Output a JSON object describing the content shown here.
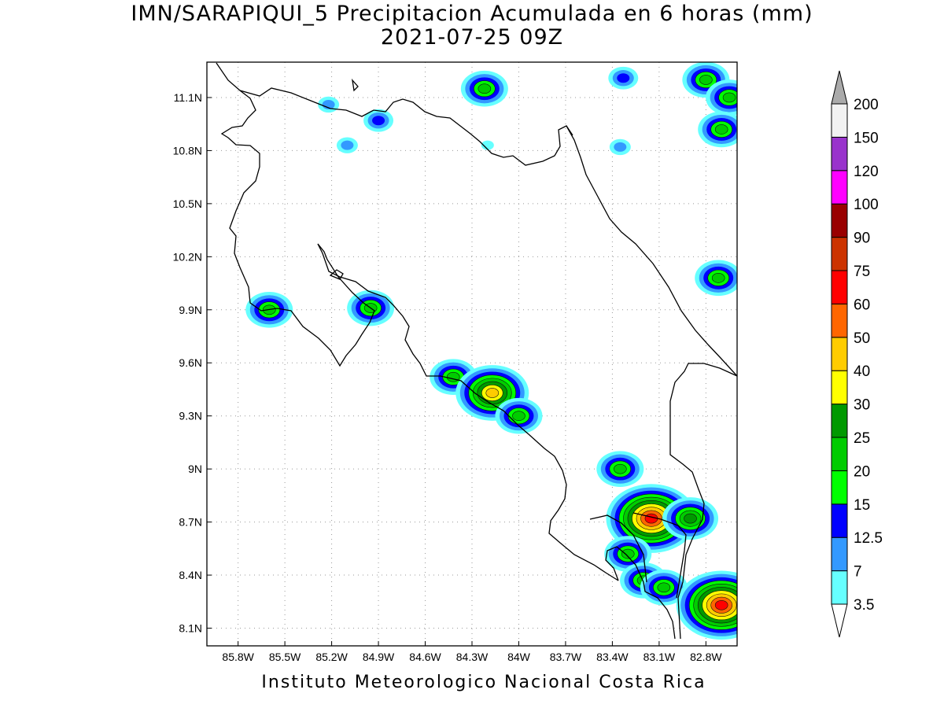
{
  "title": {
    "line1": "IMN/SARAPIQUI_5 Precipitacion Acumulada en 6 horas (mm)",
    "line2": "2021-07-25 09Z"
  },
  "footer": "Instituto Meteorologico Nacional Costa Rica",
  "map": {
    "lon_range": [
      -86.0,
      -82.6
    ],
    "lat_range": [
      8.0,
      11.3
    ],
    "lon_ticks": [
      {
        "v": -85.8,
        "label": "85.8W"
      },
      {
        "v": -85.5,
        "label": "85.5W"
      },
      {
        "v": -85.2,
        "label": "85.2W"
      },
      {
        "v": -84.9,
        "label": "84.9W"
      },
      {
        "v": -84.6,
        "label": "84.6W"
      },
      {
        "v": -84.3,
        "label": "84.3W"
      },
      {
        "v": -84.0,
        "label": "84W"
      },
      {
        "v": -83.7,
        "label": "83.7W"
      },
      {
        "v": -83.4,
        "label": "83.4W"
      },
      {
        "v": -83.1,
        "label": "83.1W"
      },
      {
        "v": -82.8,
        "label": "82.8W"
      }
    ],
    "lat_ticks": [
      {
        "v": 8.1,
        "label": "8.1N"
      },
      {
        "v": 8.4,
        "label": "8.4N"
      },
      {
        "v": 8.7,
        "label": "8.7N"
      },
      {
        "v": 9.0,
        "label": "9N"
      },
      {
        "v": 9.3,
        "label": "9.3N"
      },
      {
        "v": 9.6,
        "label": "9.6N"
      },
      {
        "v": 9.9,
        "label": "9.9N"
      },
      {
        "v": 10.2,
        "label": "10.2N"
      },
      {
        "v": 10.5,
        "label": "10.5N"
      },
      {
        "v": 10.8,
        "label": "10.8N"
      },
      {
        "v": 11.1,
        "label": "11.1N"
      }
    ],
    "grid": "dotted"
  },
  "colorbar": {
    "levels": [
      {
        "label": "3.5",
        "color": "#66ffff"
      },
      {
        "label": "7",
        "color": "#3399ff"
      },
      {
        "label": "12.5",
        "color": "#0000ff"
      },
      {
        "label": "15",
        "color": "#00ff00"
      },
      {
        "label": "20",
        "color": "#00cc00"
      },
      {
        "label": "25",
        "color": "#009900"
      },
      {
        "label": "30",
        "color": "#ffff00"
      },
      {
        "label": "40",
        "color": "#ffcc00"
      },
      {
        "label": "50",
        "color": "#ff6600"
      },
      {
        "label": "60",
        "color": "#ff0000"
      },
      {
        "label": "75",
        "color": "#cc3300"
      },
      {
        "label": "90",
        "color": "#990000"
      },
      {
        "label": "100",
        "color": "#ff00ff"
      },
      {
        "label": "120",
        "color": "#9933cc"
      },
      {
        "label": "150",
        "color": "#f2f2f2"
      },
      {
        "label": "200",
        "color": "#aaaaaa"
      }
    ]
  },
  "precip_cells": [
    {
      "lon": -84.22,
      "lat": 11.15,
      "max": 20
    },
    {
      "lon": -83.33,
      "lat": 11.21,
      "max": 12.5
    },
    {
      "lon": -82.8,
      "lat": 11.2,
      "max": 20
    },
    {
      "lon": -82.65,
      "lat": 11.1,
      "max": 20
    },
    {
      "lon": -82.7,
      "lat": 10.92,
      "max": 20
    },
    {
      "lon": -84.9,
      "lat": 10.97,
      "max": 12.5
    },
    {
      "lon": -85.22,
      "lat": 11.06,
      "max": 7
    },
    {
      "lon": -85.1,
      "lat": 10.83,
      "max": 7
    },
    {
      "lon": -84.2,
      "lat": 10.83,
      "max": 3.5
    },
    {
      "lon": -83.35,
      "lat": 10.82,
      "max": 7
    },
    {
      "lon": -82.72,
      "lat": 10.08,
      "max": 20
    },
    {
      "lon": -85.6,
      "lat": 9.9,
      "max": 20
    },
    {
      "lon": -84.95,
      "lat": 9.91,
      "max": 20
    },
    {
      "lon": -84.42,
      "lat": 9.52,
      "max": 20
    },
    {
      "lon": -84.17,
      "lat": 9.43,
      "max": 40
    },
    {
      "lon": -84.0,
      "lat": 9.3,
      "max": 20
    },
    {
      "lon": -83.35,
      "lat": 9.0,
      "max": 20
    },
    {
      "lon": -83.15,
      "lat": 8.72,
      "max": 60
    },
    {
      "lon": -82.9,
      "lat": 8.72,
      "max": 25
    },
    {
      "lon": -83.3,
      "lat": 8.52,
      "max": 20
    },
    {
      "lon": -83.2,
      "lat": 8.37,
      "max": 20
    },
    {
      "lon": -83.07,
      "lat": 8.33,
      "max": 20
    },
    {
      "lon": -82.7,
      "lat": 8.23,
      "max": 60
    }
  ]
}
